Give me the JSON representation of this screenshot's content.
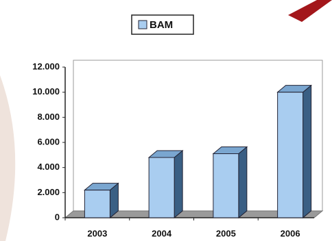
{
  "chart_data": {
    "type": "bar3d",
    "categories": [
      "2003",
      "2004",
      "2005",
      "2006"
    ],
    "series": [
      {
        "name": "BAM",
        "color": "#a9cdf0",
        "values": [
          2200,
          4800,
          5100,
          10000
        ]
      }
    ],
    "ylim": [
      0,
      12000
    ],
    "yticks": [
      0,
      {
        "value": 2000,
        "label": "2.000"
      },
      {
        "value": 4000,
        "label": "4.000"
      },
      {
        "value": 6000,
        "label": "6.000"
      },
      {
        "value": 8000,
        "label": "8.000"
      },
      {
        "value": 10000,
        "label": "10.000"
      },
      {
        "value": 12000,
        "label": "12.000"
      }
    ],
    "legend": "top"
  }
}
